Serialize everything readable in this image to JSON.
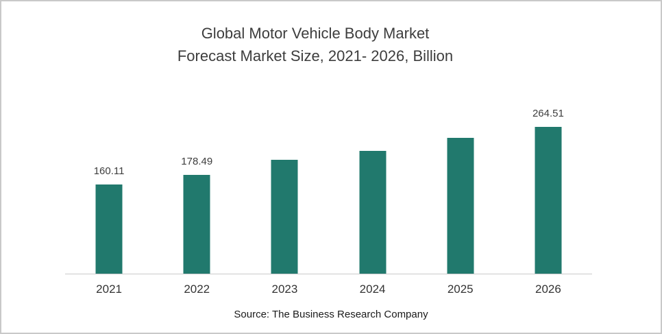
{
  "chart_data": {
    "type": "bar",
    "title": "Global Motor Vehicle Body Market Forecast Market Size, 2021- 2026, Billion",
    "title_line1": "Global Motor Vehicle Body Market",
    "title_line2": "Forecast Market Size, 2021- 2026, Billion",
    "categories": [
      "2021",
      "2022",
      "2023",
      "2024",
      "2025",
      "2026"
    ],
    "values": [
      160.11,
      178.49,
      204.6,
      221.7,
      244.9,
      264.51
    ],
    "data_labels": [
      "160.11",
      "178.49",
      "",
      "",
      "",
      "264.51"
    ],
    "unlabeled_values_are_estimates": true,
    "xlabel": "",
    "ylabel": "",
    "ylim": [
      0,
      320
    ],
    "grid": false,
    "legend": false,
    "y_axis_visible": false,
    "bar_color": "#21796D",
    "axis_color": "#C9C9C9",
    "text_color": "#3D3D3D"
  },
  "source_caption": "Source: The Business Research Company"
}
